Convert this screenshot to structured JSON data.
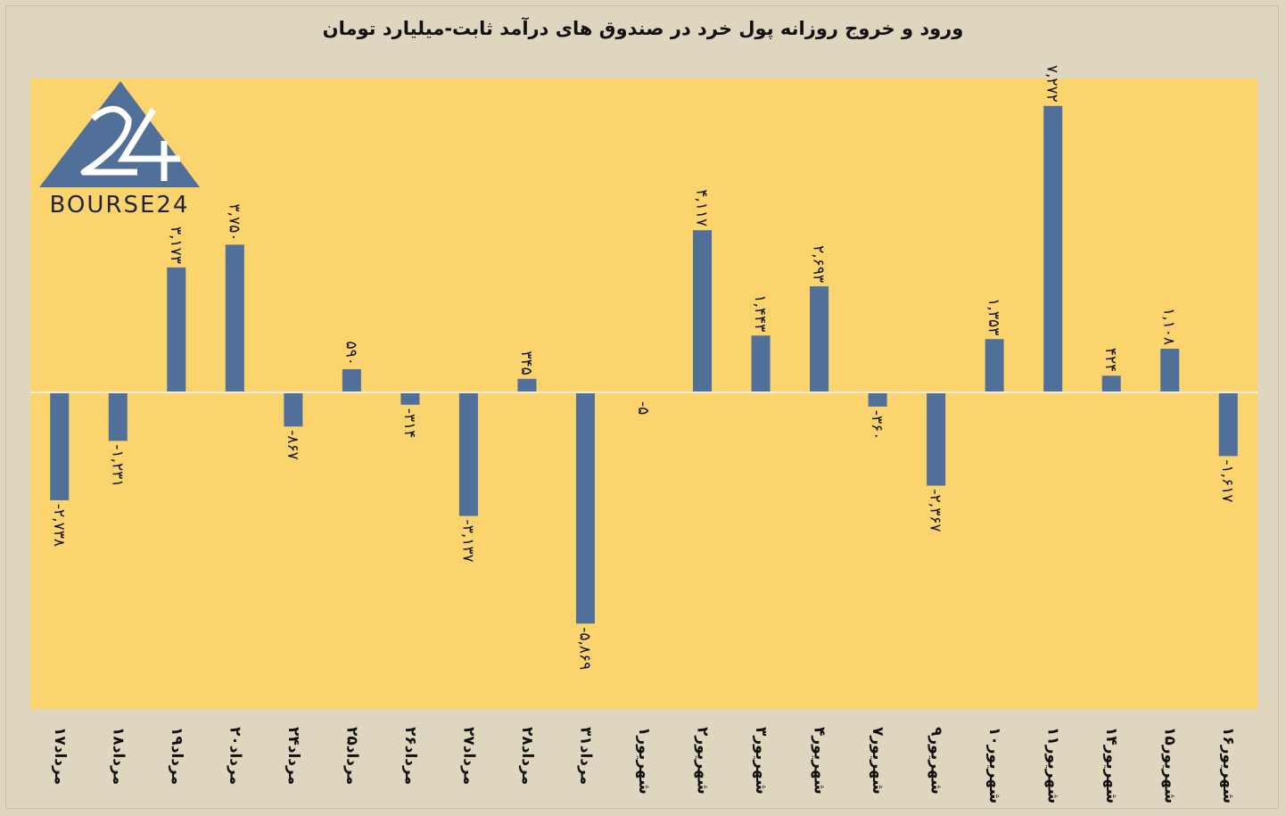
{
  "chart_data": {
    "type": "bar",
    "title": "ورود و خروج روزانه پول خرد در صندوق های درآمد ثابت-میلیارد تومان",
    "xlabel": "",
    "ylabel": "",
    "ylim": [
      -7000,
      8300
    ],
    "grid": false,
    "categories": [
      "۱۷مرداد",
      "۱۸مرداد",
      "۱۹مرداد",
      "۲۰مرداد",
      "۲۴مرداد",
      "۲۵مرداد",
      "۲۶مرداد",
      "۲۷مرداد",
      "۲۸مرداد",
      "۳۱مرداد",
      "۱شهریور",
      "۲شهریور",
      "۳شهریور",
      "۴شهریور",
      "۷شهریور",
      "۹شهریور",
      "۱۰شهریور",
      "۱۱شهریور",
      "۱۴شهریور",
      "۱۵شهریور",
      "۱۶شهریور"
    ],
    "values": [
      -2738,
      -1231,
      3173,
      3750,
      -867,
      590,
      -314,
      -3137,
      345,
      -5869,
      -5,
      4117,
      1443,
      2693,
      -360,
      -2367,
      1353,
      7272,
      424,
      1108,
      -1617
    ],
    "data_labels": [
      "-۲,۷۳۸",
      "-۱,۲۳۱",
      "۳,۱۷۳",
      "۳,۷۵۰",
      "-۸۶۷",
      "۵۹۰",
      "-۳۱۴",
      "-۳,۱۳۷",
      "۳۴۵",
      "-۵,۸۶۹",
      "-۵",
      "۴,۱۱۷",
      "۱,۴۴۳",
      "۲,۶۹۳",
      "-۳۶۰",
      "-۲,۳۶۷",
      "۱,۳۵۳",
      "۷,۲۷۲",
      "۴۲۴",
      "۱,۱۰۸",
      "-۱,۶۱۷"
    ],
    "colors": {
      "bar": "#50709a",
      "plot_background": "#fcd46d",
      "page_background": "#ded6bf",
      "zero_line": "#f1ede4",
      "text": "#111111"
    }
  },
  "logo": {
    "text": "BOURSE24",
    "color": "#50709a"
  }
}
